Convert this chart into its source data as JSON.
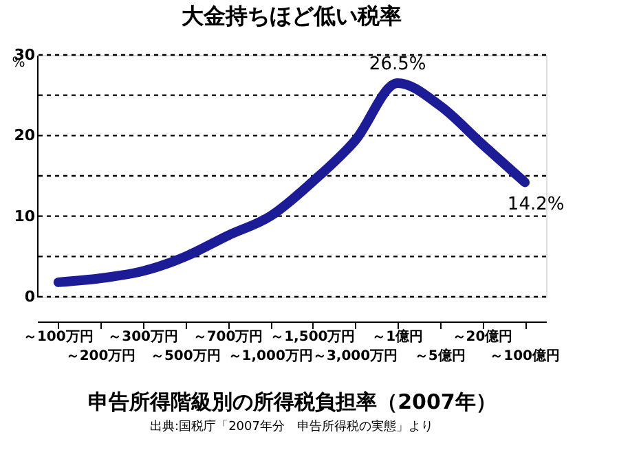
{
  "chart_data": {
    "type": "line",
    "title": "大金持ちほど低い税率",
    "xlabel": "申告所得階級別の所得税負担率（2007年）",
    "ylabel": "%",
    "categories": [
      "～100万円",
      "～200万円",
      "～300万円",
      "～500万円",
      "～700万円",
      "～1,000万円",
      "～1,500万円",
      "～3,000万円",
      "～1億円",
      "～5億円",
      "～20億円",
      "～100億円"
    ],
    "series": [
      {
        "color": "#1c1c96",
        "values": [
          1.8,
          2.3,
          3.2,
          5.0,
          7.6,
          10.0,
          14.3,
          19.4,
          26.5,
          23.7,
          18.9,
          14.2
        ],
        "value_labels": [
          null,
          null,
          null,
          null,
          null,
          null,
          null,
          null,
          "26.5%",
          null,
          null,
          "14.2%"
        ]
      }
    ],
    "ylim": [
      0,
      30
    ],
    "yticks": [
      0,
      {
        "value": 5,
        "label": null
      },
      10,
      {
        "value": 15,
        "label": null
      },
      20,
      {
        "value": 25,
        "label": null
      },
      30
    ],
    "grid": "y",
    "marker": "none",
    "line_style": "solid",
    "annotations": [
      "出典:国税庁「2007年分　申告所得税の実態」より"
    ]
  }
}
